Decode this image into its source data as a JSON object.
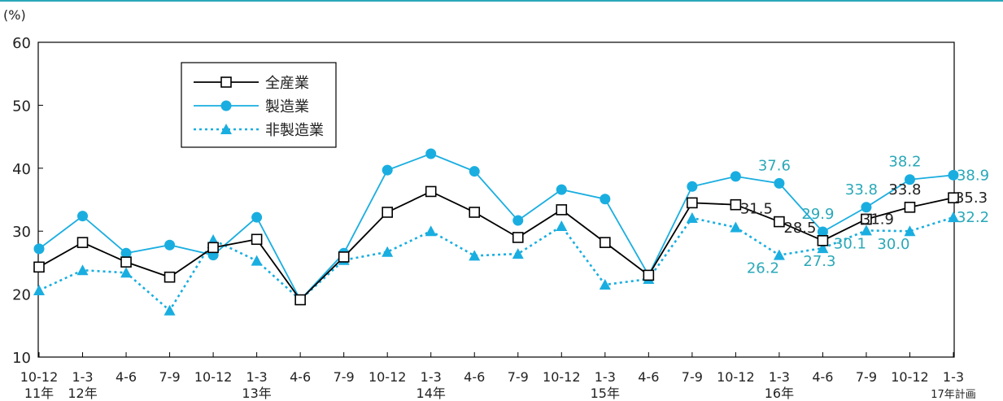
{
  "chart_data": {
    "type": "line",
    "y_unit": "(%)",
    "ylim": [
      10,
      60
    ],
    "yticks": [
      10,
      20,
      30,
      40,
      50,
      60
    ],
    "grid": false,
    "legend_position": "top-left",
    "categories": [
      "10-12",
      "1-3",
      "4-6",
      "7-9",
      "10-12",
      "1-3",
      "4-6",
      "7-9",
      "10-12",
      "1-3",
      "4-6",
      "7-9",
      "10-12",
      "1-3",
      "4-6",
      "7-9",
      "10-12",
      "1-3",
      "4-6",
      "7-9",
      "10-12",
      "1-3"
    ],
    "year_labels": [
      {
        "index": 0,
        "label": "11年"
      },
      {
        "index": 1,
        "label": "12年"
      },
      {
        "index": 5,
        "label": "13年"
      },
      {
        "index": 9,
        "label": "14年"
      },
      {
        "index": 13,
        "label": "15年"
      },
      {
        "index": 17,
        "label": "16年"
      },
      {
        "index": 21,
        "label": "17年計画"
      }
    ],
    "series": [
      {
        "name": "全産業",
        "color": "#000000",
        "marker": "square",
        "style": "solid",
        "values": [
          24.3,
          28.2,
          25.1,
          22.7,
          27.4,
          28.7,
          19.1,
          25.9,
          33.0,
          36.3,
          33.0,
          29.0,
          33.4,
          28.2,
          23.0,
          34.5,
          34.2,
          31.5,
          28.5,
          31.9,
          33.8,
          35.3
        ]
      },
      {
        "name": "製造業",
        "color": "#1aaee0",
        "marker": "circle",
        "style": "solid",
        "values": [
          27.2,
          32.4,
          26.5,
          27.8,
          26.2,
          32.2,
          19.1,
          26.5,
          39.7,
          42.3,
          39.5,
          31.7,
          36.6,
          35.1,
          23.0,
          37.1,
          38.7,
          37.6,
          29.9,
          33.8,
          38.2,
          38.9
        ]
      },
      {
        "name": "非製造業",
        "color": "#1aaee0",
        "marker": "triangle",
        "style": "dotted",
        "values": [
          20.6,
          23.8,
          23.4,
          17.4,
          28.6,
          25.3,
          19.1,
          25.4,
          26.7,
          30.0,
          26.1,
          26.4,
          30.8,
          21.5,
          22.4,
          32.1,
          30.6,
          26.2,
          27.3,
          30.1,
          30.0,
          32.2
        ]
      }
    ],
    "annotations": [
      {
        "series": 0,
        "index": 17,
        "text": "31.5",
        "color": "#222222"
      },
      {
        "series": 0,
        "index": 18,
        "text": "28.5",
        "color": "#222222"
      },
      {
        "series": 0,
        "index": 19,
        "text": "31.9",
        "color": "#222222"
      },
      {
        "series": 0,
        "index": 20,
        "text": "33.8",
        "color": "#222222"
      },
      {
        "series": 0,
        "index": 21,
        "text": "35.3",
        "color": "#222222"
      },
      {
        "series": 1,
        "index": 17,
        "text": "37.6",
        "color": "#2aa8b8"
      },
      {
        "series": 1,
        "index": 18,
        "text": "29.9",
        "color": "#2aa8b8"
      },
      {
        "series": 1,
        "index": 19,
        "text": "33.8",
        "color": "#2aa8b8"
      },
      {
        "series": 1,
        "index": 20,
        "text": "38.2",
        "color": "#2aa8b8"
      },
      {
        "series": 1,
        "index": 21,
        "text": "38.9",
        "color": "#2aa8b8"
      },
      {
        "series": 2,
        "index": 17,
        "text": "26.2",
        "color": "#2aa8b8"
      },
      {
        "series": 2,
        "index": 18,
        "text": "27.3",
        "color": "#2aa8b8"
      },
      {
        "series": 2,
        "index": 19,
        "text": "30.1",
        "color": "#2aa8b8"
      },
      {
        "series": 2,
        "index": 20,
        "text": "30.0",
        "color": "#2aa8b8"
      },
      {
        "series": 2,
        "index": 21,
        "text": "32.2",
        "color": "#2aa8b8"
      }
    ]
  }
}
